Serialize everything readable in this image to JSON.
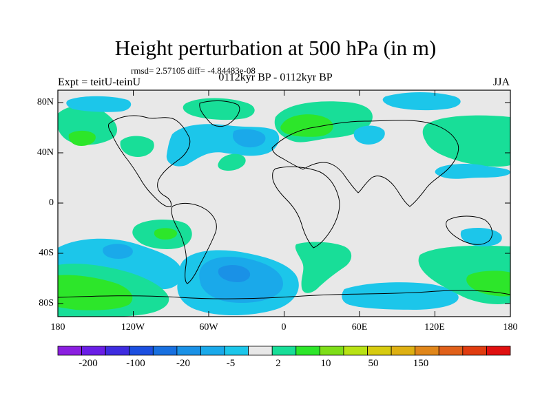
{
  "figure": {
    "title": "Height perturbation at 500 hPa (in m)",
    "stats": "rmsd= 2.57105 diff= -4.84483e-08",
    "left_label": "Expt = teitU-teinU",
    "center_label": "0112kyr BP - 0112kyr BP",
    "right_label": "JJA"
  },
  "axes": {
    "lat_ticks": [
      "80N",
      "40N",
      "0",
      "40S",
      "80S"
    ],
    "lat_values": [
      80,
      40,
      0,
      -40,
      -80
    ],
    "lon_ticks": [
      "180",
      "120W",
      "60W",
      "0",
      "60E",
      "120E",
      "180"
    ],
    "lon_values": [
      -180,
      -120,
      -60,
      0,
      60,
      120,
      180
    ],
    "lat_range": [
      -90,
      90
    ],
    "lon_range": [
      -180,
      180
    ]
  },
  "colorbar": {
    "labels": [
      "-200",
      "-100",
      "-20",
      "-5",
      "2",
      "10",
      "50",
      "150"
    ],
    "colors": [
      "#8b1fe0",
      "#6a1ee6",
      "#3e2ce0",
      "#1c4fe0",
      "#1870e0",
      "#1a91e6",
      "#1aa9ea",
      "#1cc6ea",
      "#e8e8e8",
      "#18de98",
      "#2de62a",
      "#7ede18",
      "#b8e214",
      "#d7cb10",
      "#deb012",
      "#e0861a",
      "#e0601a",
      "#e03c10",
      "#e01010"
    ]
  },
  "colors": {
    "background": "#e8e8e8",
    "neg_light": "#1cc6ea",
    "neg_mid": "#1aa9ea",
    "neg_dark": "#1a91e6",
    "pos_light": "#18de98",
    "pos_mid": "#2de62a",
    "pos_dark": "#7ede18"
  }
}
